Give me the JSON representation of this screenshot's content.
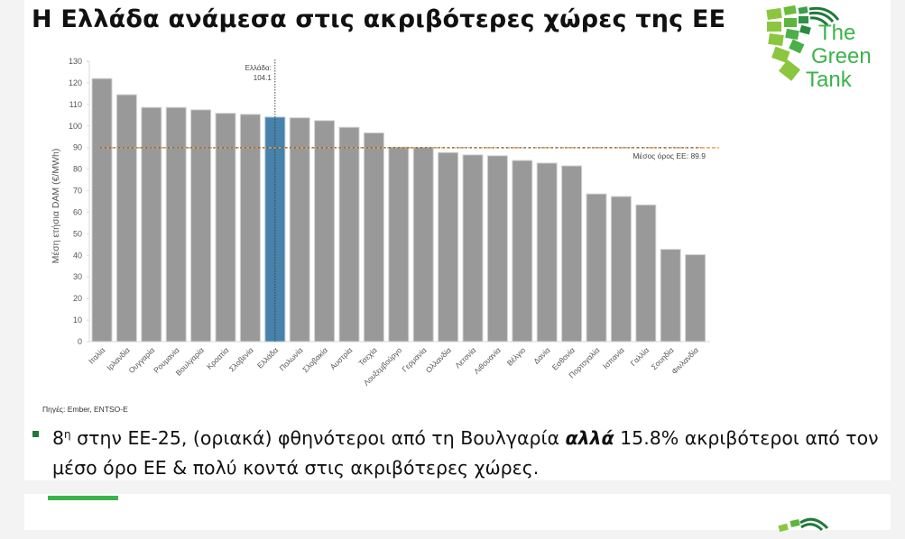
{
  "slide": {
    "title": "Η Ελλάδα ανάμεσα στις ακριβότερες χώρες της ΕΕ",
    "logo": {
      "line1": "The",
      "line2": "Green",
      "line3": "Tank"
    },
    "source": "Πηγές: Ember, ENTSO-E",
    "bullet": {
      "rank": "8",
      "rank_sup": "η",
      "part1": " στην ΕΕ-25, (οριακά) φθηνότεροι από τη Βουλγαρία ",
      "emphasis": "αλλά",
      "part2": " 15.8% ακριβότεροι από τον μέσο όρο ΕΕ & πολύ κοντά στις ακριβότερες χώρες."
    }
  },
  "colors": {
    "bar": "#999999",
    "highlight": "#4682a9",
    "avg_line": "#e8a050",
    "accent_green": "#3cb34a",
    "bullet_marker": "#1f7a3a"
  },
  "chart_data": {
    "type": "bar",
    "title": "",
    "xlabel": "",
    "ylabel": "Μέση ετήσια DAM (€/MWh)",
    "ylim": [
      0,
      130
    ],
    "yticks": [
      0,
      10,
      20,
      30,
      40,
      50,
      60,
      70,
      80,
      90,
      100,
      110,
      120,
      130
    ],
    "grid": false,
    "categories": [
      "Ιταλία",
      "Ιρλανδία",
      "Ουγγαρία",
      "Ρουμανία",
      "Βουλγαρία",
      "Κροατία",
      "Σλοβενία",
      "Ελλάδα",
      "Πολωνία",
      "Σλοβακία",
      "Αυστρία",
      "Τσεχία",
      "Λουξεμβούργο",
      "Γερμανία",
      "Ολλανδία",
      "Λετονία",
      "Λιθουανία",
      "Βέλγιο",
      "Δανία",
      "Εσθονία",
      "Πορτογαλία",
      "Ισπανία",
      "Γαλλία",
      "Σουηδία",
      "Φινλανδία"
    ],
    "values": [
      122.0,
      114.5,
      108.6,
      108.6,
      107.5,
      105.9,
      105.4,
      104.1,
      103.8,
      102.5,
      99.4,
      96.8,
      90.2,
      90.1,
      87.7,
      86.6,
      86.2,
      84.0,
      82.8,
      81.5,
      68.5,
      67.3,
      63.4,
      42.8,
      40.3
    ],
    "highlight_index": 7,
    "annotations": [
      {
        "label": "Ελλάδα:",
        "value_label": "104.1",
        "type": "vertical-dotted-line",
        "x": "Ελλάδα"
      },
      {
        "label": "Μέσος όρος ΕΕ: 89.9",
        "type": "horizontal-dashed-line",
        "y": 89.9
      }
    ]
  }
}
